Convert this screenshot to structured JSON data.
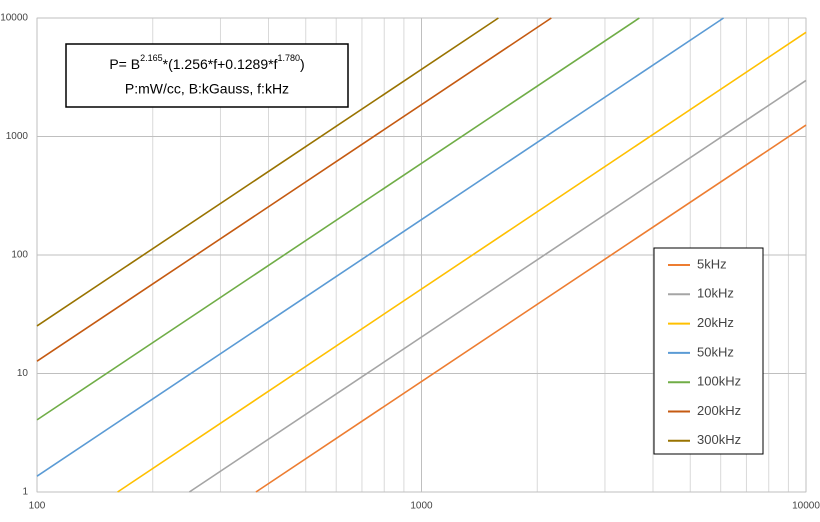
{
  "chart_data": {
    "type": "line",
    "annotation": {
      "line1": [
        "P= B",
        "2.165",
        "*(1.256*f+0.1289*f",
        "1.780",
        ")"
      ],
      "line2": "P:mW/cc, B:kGauss, f:kHz"
    },
    "xlim": [
      100,
      10000
    ],
    "ylim": [
      1,
      10000
    ],
    "xticks": [
      100,
      1000,
      10000
    ],
    "yticks": [
      1,
      10,
      100,
      1000,
      10000
    ],
    "x_minor_grid": [
      200,
      300,
      400,
      500,
      600,
      700,
      800,
      900,
      2000,
      3000,
      4000,
      5000,
      6000,
      7000,
      8000,
      9000
    ],
    "log_x": true,
    "log_y": true,
    "grid": true,
    "series": [
      {
        "name": "5kHz",
        "color": "#ed7d31",
        "x": [
          371,
          10000
        ],
        "values": [
          1,
          1249
        ]
      },
      {
        "name": "10kHz",
        "color": "#a5a5a5",
        "x": [
          249,
          10000
        ],
        "values": [
          1,
          2972
        ]
      },
      {
        "name": "20kHz",
        "color": "#ffc000",
        "x": [
          162,
          10000
        ],
        "values": [
          1,
          7572
        ]
      },
      {
        "name": "50kHz",
        "color": "#5b9bd5",
        "x": [
          100,
          6104
        ],
        "values": [
          1.36,
          10000
        ]
      },
      {
        "name": "100kHz",
        "color": "#70ad47",
        "x": [
          100,
          3686
        ],
        "values": [
          4.06,
          10000
        ]
      },
      {
        "name": "200kHz",
        "color": "#c55a11",
        "x": [
          100,
          2176
        ],
        "values": [
          12.7,
          10000
        ]
      },
      {
        "name": "300kHz",
        "color": "#997300",
        "x": [
          100,
          1585
        ],
        "values": [
          25.2,
          10000
        ]
      }
    ]
  }
}
